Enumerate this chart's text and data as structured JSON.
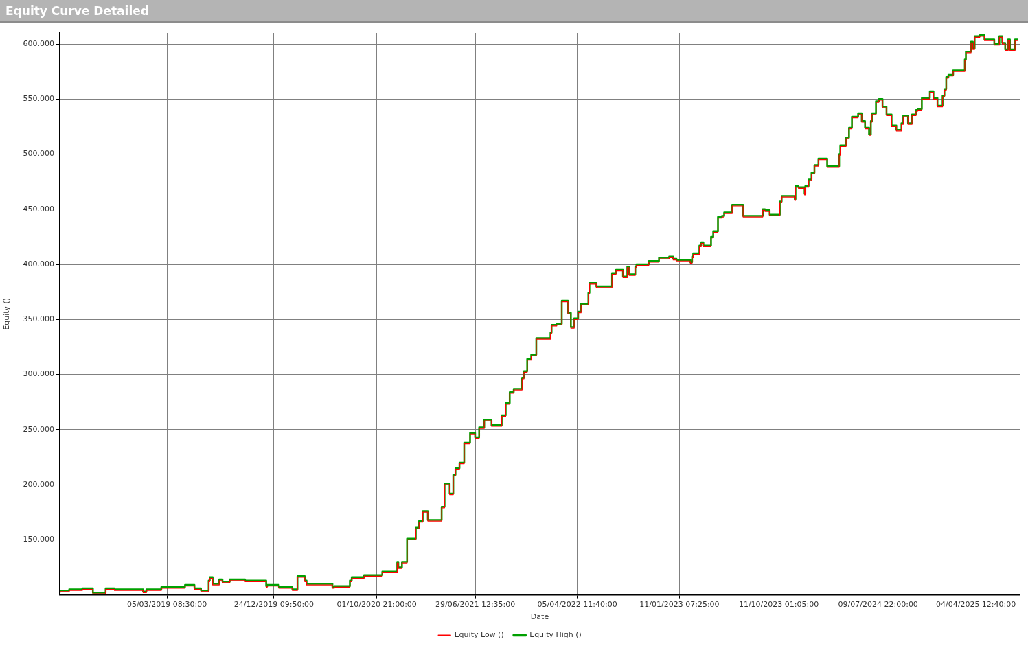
{
  "chart_data": {
    "type": "step",
    "title": "Equity Curve Detailed",
    "xlabel": "Date",
    "ylabel": "Equity ()",
    "xlim": [
      "2018-05-15",
      "2025-08-03"
    ],
    "xticks": [
      {
        "value": "2019-03-05T08:30",
        "label": "05/03/2019 08:30:00"
      },
      {
        "value": "2019-12-24T09:50",
        "label": "24/12/2019 09:50:00"
      },
      {
        "value": "2020-10-01T21:00",
        "label": "01/10/2020 21:00:00"
      },
      {
        "value": "2021-06-29T12:35",
        "label": "29/06/2021 12:35:00"
      },
      {
        "value": "2022-04-05T11:40",
        "label": "05/04/2022 11:40:00"
      },
      {
        "value": "2023-01-11T07:25",
        "label": "11/01/2023 07:25:00"
      },
      {
        "value": "2023-10-11T01:05",
        "label": "11/10/2023 01:05:00"
      },
      {
        "value": "2024-07-09T22:00",
        "label": "09/07/2024 22:00:00"
      },
      {
        "value": "2025-04-04T12:40",
        "label": "04/04/2025 12:40:00"
      }
    ],
    "ylim": [
      100000,
      610000
    ],
    "yticks": [
      {
        "value": 150000,
        "label": "150.000"
      },
      {
        "value": 200000,
        "label": "200.000"
      },
      {
        "value": 250000,
        "label": "250.000"
      },
      {
        "value": 300000,
        "label": "300.000"
      },
      {
        "value": 350000,
        "label": "350.000"
      },
      {
        "value": 400000,
        "label": "400.000"
      },
      {
        "value": 450000,
        "label": "450.000"
      },
      {
        "value": 500000,
        "label": "500.000"
      },
      {
        "value": 550000,
        "label": "550.000"
      },
      {
        "value": 600000,
        "label": "600.000"
      }
    ],
    "x": [
      "2018-05-15",
      "2018-06-10",
      "2018-07-16",
      "2018-08-14",
      "2018-09-18",
      "2018-10-12",
      "2018-12-30",
      "2019-01-08",
      "2019-02-18",
      "2019-02-24",
      "2019-04-24",
      "2019-05-20",
      "2019-06-07",
      "2019-06-28",
      "2019-07-01",
      "2019-07-09",
      "2019-07-27",
      "2019-08-05",
      "2019-08-25",
      "2019-10-06",
      "2019-11-01",
      "2019-12-03",
      "2019-12-06",
      "2020-01-07",
      "2020-02-13",
      "2020-02-27",
      "2020-03-09",
      "2020-03-18",
      "2020-03-23",
      "2020-04-18",
      "2020-06-02",
      "2020-06-07",
      "2020-07-20",
      "2020-07-25",
      "2020-08-28",
      "2020-10-17",
      "2020-10-20",
      "2020-11-27",
      "2020-11-30",
      "2020-12-10",
      "2020-12-24",
      "2021-01-17",
      "2021-01-26",
      "2021-02-05",
      "2021-02-19",
      "2021-02-22",
      "2021-03-29",
      "2021-04-06",
      "2021-04-20",
      "2021-04-30",
      "2021-05-06",
      "2021-05-17",
      "2021-05-30",
      "2021-06-15",
      "2021-06-29",
      "2021-07-10",
      "2021-07-24",
      "2021-08-13",
      "2021-09-10",
      "2021-09-21",
      "2021-10-02",
      "2021-10-13",
      "2021-11-05",
      "2021-11-10",
      "2021-11-19",
      "2021-11-30",
      "2021-12-14",
      "2021-12-31",
      "2022-01-22",
      "2022-01-25",
      "2022-02-08",
      "2022-02-22",
      "2022-03-11",
      "2022-03-19",
      "2022-03-28",
      "2022-04-08",
      "2022-04-16",
      "2022-05-06",
      "2022-05-09",
      "2022-05-28",
      "2022-06-06",
      "2022-07-10",
      "2022-07-21",
      "2022-08-09",
      "2022-08-21",
      "2022-08-26",
      "2022-09-12",
      "2022-09-15",
      "2022-10-19",
      "2022-11-16",
      "2022-11-30",
      "2022-12-14",
      "2022-12-25",
      "2023-01-03",
      "2023-02-10",
      "2023-02-15",
      "2023-02-18",
      "2023-03-07",
      "2023-03-12",
      "2023-03-18",
      "2023-04-08",
      "2023-04-14",
      "2023-04-27",
      "2023-05-08",
      "2023-05-14",
      "2023-06-05",
      "2023-06-24",
      "2023-07-05",
      "2023-07-10",
      "2023-08-28",
      "2023-09-03",
      "2023-09-16",
      "2023-10-14",
      "2023-10-19",
      "2023-10-30",
      "2023-11-24",
      "2023-11-26",
      "2023-12-04",
      "2023-12-21",
      "2023-12-23",
      "2024-01-01",
      "2024-01-09",
      "2024-01-17",
      "2024-01-28",
      "2024-02-21",
      "2024-02-24",
      "2024-03-25",
      "2024-03-28",
      "2024-04-13",
      "2024-04-21",
      "2024-04-29",
      "2024-05-16",
      "2024-05-26",
      "2024-06-04",
      "2024-06-15",
      "2024-06-20",
      "2024-06-23",
      "2024-07-04",
      "2024-07-12",
      "2024-07-22",
      "2024-08-02",
      "2024-08-16",
      "2024-08-29",
      "2024-09-01",
      "2024-09-12",
      "2024-09-17",
      "2024-09-30",
      "2024-10-11",
      "2024-10-22",
      "2024-10-27",
      "2024-11-07",
      "2024-11-10",
      "2024-11-29",
      "2024-12-09",
      "2024-12-20",
      "2025-01-03",
      "2025-01-08",
      "2025-01-13",
      "2025-01-19",
      "2025-02-01",
      "2025-02-17",
      "2025-03-05",
      "2025-03-08",
      "2025-03-22",
      "2025-03-27",
      "2025-04-01",
      "2025-04-04",
      "2025-04-15",
      "2025-04-28",
      "2025-05-12",
      "2025-05-25",
      "2025-06-08",
      "2025-06-16",
      "2025-06-24",
      "2025-07-02",
      "2025-07-07",
      "2025-07-10",
      "2025-07-21",
      "2025-07-23",
      "2025-07-29"
    ],
    "series": [
      {
        "name": "Equity High ()",
        "color": "#00a000",
        "values": [
          102000,
          104000,
          105000,
          106000,
          102000,
          106000,
          105000,
          103000,
          105000,
          107000,
          107000,
          109000,
          106000,
          104000,
          113000,
          116000,
          110000,
          114000,
          112000,
          114000,
          113000,
          113000,
          108000,
          109000,
          107000,
          105000,
          117000,
          117000,
          113000,
          110000,
          110000,
          107000,
          108000,
          113000,
          116000,
          118000,
          121000,
          121000,
          130000,
          125000,
          130000,
          151000,
          161000,
          167000,
          176000,
          168000,
          168000,
          180000,
          201000,
          192000,
          209000,
          215000,
          220000,
          238000,
          247000,
          243000,
          252000,
          259000,
          254000,
          263000,
          274000,
          284000,
          287000,
          297000,
          303000,
          314000,
          318000,
          333000,
          333000,
          338000,
          345000,
          346000,
          367000,
          356000,
          343000,
          351000,
          357000,
          364000,
          374000,
          383000,
          380000,
          380000,
          392000,
          395000,
          389000,
          398000,
          391000,
          398000,
          400000,
          403000,
          406000,
          406000,
          407000,
          405000,
          404000,
          402000,
          407000,
          410000,
          417000,
          420000,
          417000,
          425000,
          430000,
          443000,
          444000,
          447000,
          454000,
          454000,
          444000,
          444000,
          450000,
          449000,
          445000,
          457000,
          462000,
          462000,
          459000,
          471000,
          470000,
          464000,
          471000,
          477000,
          483000,
          490000,
          496000,
          489000,
          489000,
          500000,
          508000,
          515000,
          524000,
          534000,
          537000,
          530000,
          524000,
          518000,
          530000,
          537000,
          548000,
          550000,
          543000,
          536000,
          526000,
          522000,
          522000,
          528000,
          535000,
          528000,
          536000,
          540000,
          541000,
          551000,
          551000,
          557000,
          551000,
          544000,
          553000,
          559000,
          570000,
          572000,
          576000,
          576000,
          586000,
          593000,
          602000,
          596000,
          607000,
          607000,
          608000,
          604000,
          604000,
          600000,
          607000,
          601000,
          595000,
          604000,
          595000,
          595000,
          604000,
          604000
        ]
      },
      {
        "name": "Equity Low ()",
        "color": "#ff0000",
        "values": [
          101000,
          103000,
          104000,
          105000,
          101000,
          105000,
          104000,
          102000,
          104000,
          106000,
          106000,
          108000,
          105000,
          103000,
          112000,
          115000,
          109000,
          113000,
          111000,
          113000,
          112000,
          112000,
          107000,
          108000,
          106000,
          104000,
          116000,
          116000,
          112000,
          109000,
          109000,
          106000,
          107000,
          112000,
          115000,
          117000,
          120000,
          120000,
          129000,
          124000,
          129000,
          150000,
          160000,
          166000,
          175000,
          167000,
          167000,
          179000,
          200000,
          191000,
          208000,
          214000,
          219000,
          237000,
          246000,
          242000,
          251000,
          258000,
          253000,
          262000,
          273000,
          283000,
          286000,
          296000,
          302000,
          313000,
          317000,
          332000,
          332000,
          337000,
          344000,
          345000,
          366000,
          355000,
          342000,
          350000,
          356000,
          363000,
          373000,
          382000,
          379000,
          379000,
          391000,
          394000,
          388000,
          397000,
          390000,
          397000,
          399000,
          402000,
          405000,
          405000,
          406000,
          404000,
          403000,
          401000,
          406000,
          409000,
          416000,
          419000,
          416000,
          424000,
          429000,
          442000,
          443000,
          446000,
          453000,
          453000,
          443000,
          443000,
          449000,
          448000,
          444000,
          456000,
          461000,
          461000,
          458000,
          470000,
          469000,
          463000,
          470000,
          476000,
          482000,
          489000,
          495000,
          488000,
          488000,
          499000,
          507000,
          514000,
          523000,
          533000,
          536000,
          529000,
          523000,
          517000,
          529000,
          536000,
          547000,
          549000,
          542000,
          535000,
          525000,
          521000,
          521000,
          527000,
          534000,
          527000,
          535000,
          539000,
          540000,
          550000,
          550000,
          556000,
          550000,
          543000,
          552000,
          558000,
          569000,
          571000,
          575000,
          575000,
          585000,
          592000,
          601000,
          595000,
          606000,
          606000,
          607000,
          603000,
          603000,
          599000,
          606000,
          600000,
          594000,
          603000,
          594000,
          594000,
          603000,
          603000
        ]
      }
    ],
    "grid": true,
    "legend": "bottom",
    "marker": "none",
    "line_style": "solid"
  }
}
